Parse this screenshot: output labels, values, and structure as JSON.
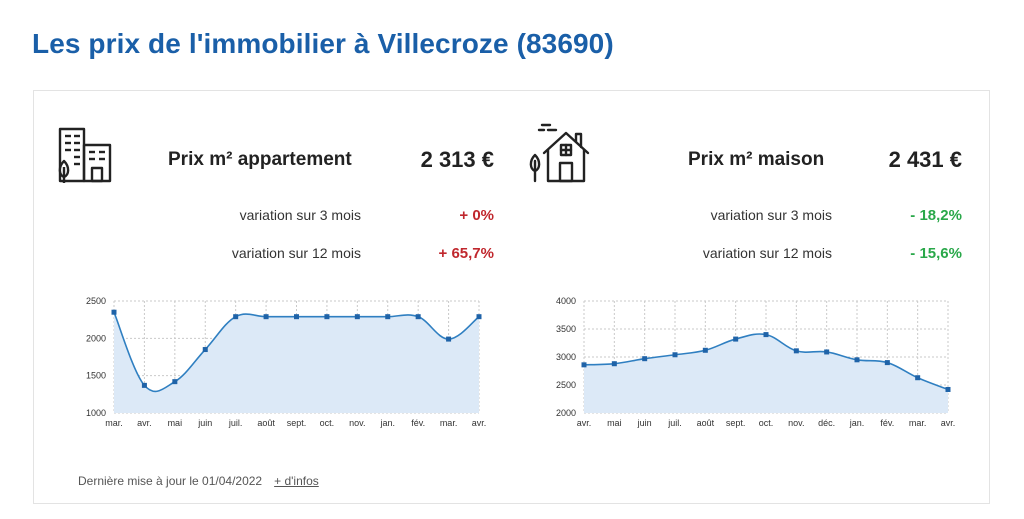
{
  "title": "Les prix de l'immobilier à Villecroze (83690)",
  "apartment": {
    "label": "Prix m² appartement",
    "price": "2 313 €",
    "var3_label": "variation sur 3 mois",
    "var3_value": "+ 0%",
    "var12_label": "variation sur 12 mois",
    "var12_value": "+ 65,7%",
    "icon": "apartment-building-icon",
    "value_color": "#c0272d"
  },
  "house": {
    "label": "Prix m² maison",
    "price": "2 431 €",
    "var3_label": "variation sur 3 mois",
    "var3_value": "- 18,2%",
    "var12_label": "variation sur 12 mois",
    "var12_value": "- 15,6%",
    "icon": "house-icon",
    "value_color": "#2aa84a"
  },
  "footer": {
    "updated": "Dernière mise à jour le 01/04/2022",
    "more_link": "+ d'infos"
  },
  "colors": {
    "title": "#1a5fa8",
    "line": "#2f7fc1",
    "area": "#dce9f7",
    "grid": "#c9c9c9"
  },
  "chart_data": [
    {
      "type": "area",
      "categories": [
        "mar.",
        "avr.",
        "mai",
        "juin",
        "juil.",
        "août",
        "sept.",
        "oct.",
        "nov.",
        "janv.",
        "févr.",
        "mars",
        "avr."
      ],
      "tick_labels": [
        "mar.",
        "avr.",
        "mai",
        "juin",
        "juil.",
        "août",
        "sept.",
        "oct.",
        "nov.",
        "jan.",
        "fév.",
        "mar.",
        "avr."
      ],
      "series": [
        {
          "values": [
            2350,
            1370,
            1420,
            1850,
            2290,
            2290,
            2290,
            2290,
            2290,
            2290,
            2290,
            1990,
            2290
          ]
        }
      ],
      "yticks": [
        1000,
        1500,
        2000,
        2500
      ],
      "ylim": [
        1000,
        2500
      ],
      "grid": true,
      "legend": "none"
    },
    {
      "type": "area",
      "categories": [
        "avr.",
        "mai",
        "juin",
        "juil.",
        "août",
        "sept.",
        "oct.",
        "nov.",
        "déc.",
        "janv.",
        "févr.",
        "mars",
        "avr."
      ],
      "tick_labels": [
        "avr.",
        "mai",
        "juin",
        "juil.",
        "août",
        "sept.",
        "oct.",
        "nov.",
        "déc.",
        "jan.",
        "fév.",
        "mar.",
        "avr."
      ],
      "series": [
        {
          "values": [
            2860,
            2880,
            2970,
            3040,
            3120,
            3320,
            3400,
            3110,
            3090,
            2950,
            2900,
            2630,
            2420
          ]
        }
      ],
      "yticks": [
        2000,
        2500,
        3000,
        3500,
        4000
      ],
      "ylim": [
        2000,
        4000
      ],
      "grid": true,
      "legend": "none"
    }
  ]
}
